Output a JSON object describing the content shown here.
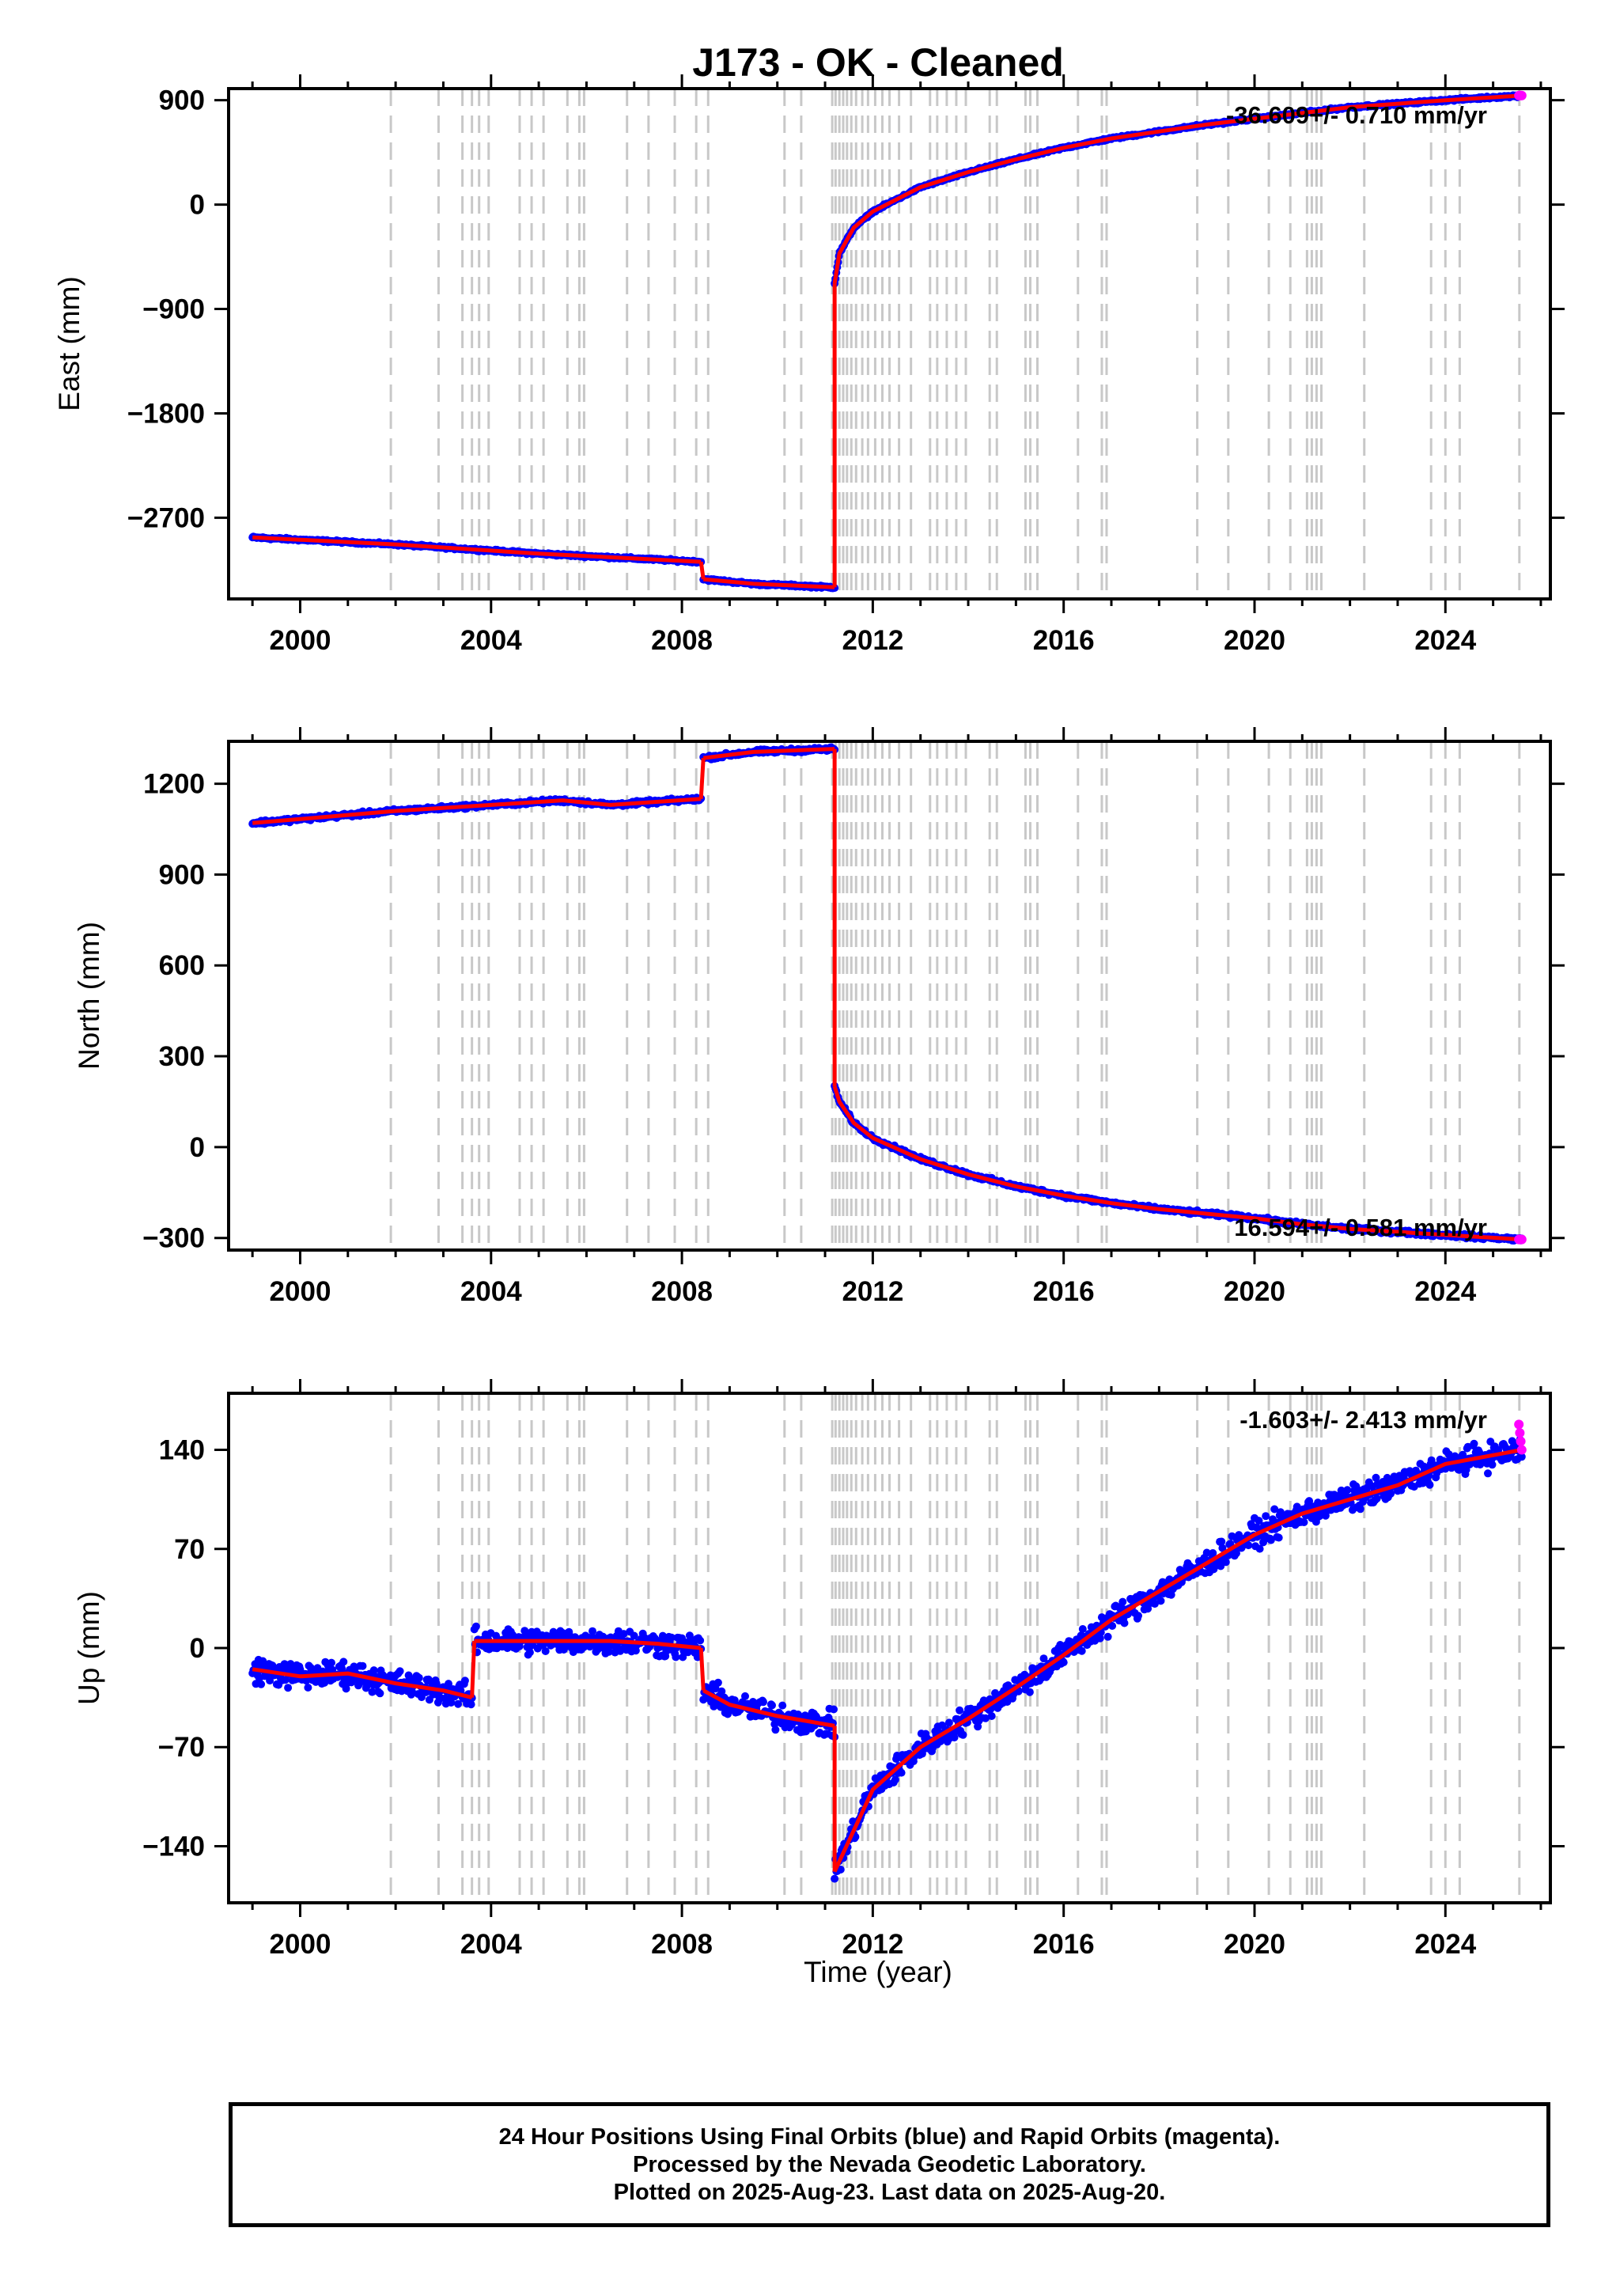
{
  "title": "J173  - OK - Cleaned",
  "colors": {
    "final": "#0000ff",
    "rapid": "#ff00ff",
    "model": "#ff0000",
    "steps": "#c8c8c8"
  },
  "xlabel": "Time (year)",
  "footer": {
    "line1": "24 Hour Positions Using Final Orbits (blue) and Rapid Orbits (magenta).",
    "line2": "Processed by the Nevada Geodetic Laboratory.",
    "line3": "Plotted on 2025-Aug-23. Last data on 2025-Aug-20."
  },
  "chart_data": [
    {
      "type": "scatter",
      "panel": "east",
      "ylabel": "East (mm)",
      "rate_label": "-36.609+/- 0.710 mm/yr",
      "xlim": [
        1998.5,
        2026.2
      ],
      "ylim": [
        -3400,
        1000
      ],
      "xticks": [
        2000,
        2004,
        2008,
        2012,
        2016,
        2020,
        2024
      ],
      "yticks": [
        -2700,
        -1800,
        -900,
        0,
        900
      ],
      "grid": false,
      "series": [
        {
          "x": [
            1999.0,
            2002.0,
            2005.0,
            2008.4
          ],
          "y": [
            -2870,
            -2930,
            -3010,
            -3080
          ]
        },
        {
          "x": [
            2008.45,
            2009.5,
            2011.2
          ],
          "y": [
            -3230,
            -3270,
            -3300
          ]
        },
        {
          "x": [
            2011.2,
            2011.3,
            2011.6,
            2012.0,
            2013.0,
            2014.0,
            2015.0,
            2016.0,
            2017.0,
            2018.0,
            2019.0,
            2020.0,
            2021.0,
            2022.0,
            2023.0,
            2024.0,
            2025.6
          ],
          "y": [
            -680,
            -420,
            -200,
            -60,
            150,
            280,
            390,
            490,
            570,
            630,
            690,
            740,
            790,
            840,
            870,
            900,
            940
          ]
        }
      ]
    },
    {
      "type": "scatter",
      "panel": "north",
      "ylabel": "North (mm)",
      "rate_label": "16.594+/- 0.581 mm/yr",
      "xlim": [
        1998.5,
        2026.2
      ],
      "ylim": [
        -340,
        1340
      ],
      "xticks": [
        2000,
        2004,
        2008,
        2012,
        2016,
        2020,
        2024
      ],
      "yticks": [
        -300,
        0,
        300,
        600,
        900,
        1200
      ],
      "grid": false,
      "series": [
        {
          "x": [
            1999.0,
            2002.0,
            2004.0,
            2005.5,
            2006.5,
            2008.4
          ],
          "y": [
            1070,
            1110,
            1130,
            1145,
            1130,
            1150
          ]
        },
        {
          "x": [
            2008.45,
            2009.5,
            2011.2
          ],
          "y": [
            1285,
            1305,
            1315
          ]
        },
        {
          "x": [
            2011.2,
            2011.3,
            2011.6,
            2012.0,
            2013.0,
            2014.0,
            2015.0,
            2016.0,
            2017.0,
            2018.0,
            2019.0,
            2020.0,
            2021.0,
            2022.0,
            2023.0,
            2024.0,
            2025.6
          ],
          "y": [
            200,
            150,
            80,
            30,
            -40,
            -90,
            -130,
            -160,
            -185,
            -205,
            -220,
            -235,
            -255,
            -270,
            -280,
            -290,
            -305
          ]
        }
      ]
    },
    {
      "type": "scatter",
      "panel": "up",
      "ylabel": "Up (mm)",
      "rate_label": "-1.603+/- 2.413 mm/yr",
      "xlim": [
        1998.5,
        2026.2
      ],
      "ylim": [
        -180,
        180
      ],
      "xticks": [
        2000,
        2004,
        2008,
        2012,
        2016,
        2020,
        2024
      ],
      "yticks": [
        -140,
        -70,
        0,
        70,
        140
      ],
      "grid": false,
      "series": [
        {
          "x": [
            1999.0,
            2000.0,
            2001.0,
            2002.0,
            2003.0,
            2003.6
          ],
          "y": [
            -15,
            -20,
            -18,
            -25,
            -30,
            -35
          ]
        },
        {
          "x": [
            2003.65,
            2004.5,
            2005.5,
            2006.5,
            2007.5,
            2008.4
          ],
          "y": [
            5,
            5,
            5,
            5,
            3,
            0
          ]
        },
        {
          "x": [
            2008.45,
            2009.0,
            2010.0,
            2011.2
          ],
          "y": [
            -30,
            -40,
            -48,
            -55
          ]
        },
        {
          "x": [
            2011.2,
            2012.0,
            2013.0,
            2014.0,
            2015.0,
            2016.0,
            2017.0,
            2018.0,
            2019.0,
            2020.0,
            2021.0,
            2022.0,
            2023.0,
            2024.0,
            2025.6
          ],
          "y": [
            -158,
            -100,
            -70,
            -50,
            -28,
            -5,
            20,
            40,
            60,
            80,
            95,
            105,
            115,
            130,
            140
          ]
        }
      ]
    }
  ],
  "steps": [
    2001.9,
    2002.9,
    2003.4,
    2003.6,
    2003.75,
    2003.95,
    2004.6,
    2004.85,
    2005.1,
    2005.6,
    2005.85,
    2005.95,
    2006.85,
    2007.3,
    2007.85,
    2008.3,
    2008.55,
    2010.15,
    2010.5,
    2011.15,
    2011.22,
    2011.3,
    2011.38,
    2011.46,
    2011.55,
    2011.65,
    2011.78,
    2011.9,
    2012.05,
    2012.2,
    2012.35,
    2012.55,
    2012.8,
    2013.2,
    2013.35,
    2013.55,
    2013.75,
    2013.95,
    2014.45,
    2014.6,
    2015.2,
    2015.3,
    2015.45,
    2016.3,
    2016.8,
    2016.9,
    2018.8,
    2019.45,
    2020.3,
    2020.75,
    2021.1,
    2021.2,
    2021.3,
    2021.4,
    2022.3,
    2023.7,
    2024.0,
    2024.3,
    2025.55
  ]
}
